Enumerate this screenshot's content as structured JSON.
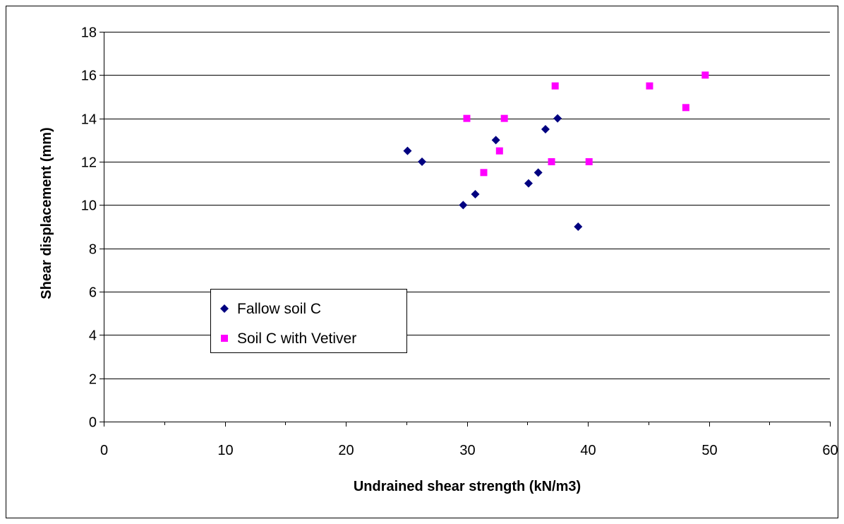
{
  "chart_data": {
    "type": "scatter",
    "title": "",
    "xlabel": "Undrained shear strength (kN/m3)",
    "ylabel": "Shear displacement (mm)",
    "xlim": [
      0,
      60
    ],
    "ylim": [
      0,
      18
    ],
    "x_major_ticks": [
      0,
      10,
      20,
      30,
      40,
      50,
      60
    ],
    "x_tick_labels": [
      "0",
      "10",
      "20",
      "30",
      "40",
      "50",
      "60"
    ],
    "x_minor_ticks": [
      5,
      15,
      25,
      35,
      45,
      55
    ],
    "y_major_ticks": [
      0,
      2,
      4,
      6,
      8,
      10,
      12,
      14,
      16,
      18
    ],
    "y_tick_labels": [
      "0",
      "2",
      "4",
      "6",
      "8",
      "10",
      "12",
      "14",
      "16",
      "18"
    ],
    "grid": "horizontal",
    "legend_position": "lower-left",
    "series": [
      {
        "name": "Fallow soil C",
        "marker": "diamond",
        "color": "#000080",
        "points": [
          {
            "x": 25.1,
            "y": 12.5
          },
          {
            "x": 26.3,
            "y": 12.0
          },
          {
            "x": 29.7,
            "y": 10.0
          },
          {
            "x": 30.7,
            "y": 10.5
          },
          {
            "x": 32.4,
            "y": 13.0
          },
          {
            "x": 35.1,
            "y": 11.0
          },
          {
            "x": 35.9,
            "y": 11.5
          },
          {
            "x": 36.5,
            "y": 13.5
          },
          {
            "x": 37.5,
            "y": 14.0
          },
          {
            "x": 39.2,
            "y": 9.0
          }
        ]
      },
      {
        "name": "Soil C with Vetiver",
        "marker": "square",
        "color": "#ff00ff",
        "points": [
          {
            "x": 30.0,
            "y": 14.0
          },
          {
            "x": 31.4,
            "y": 11.5
          },
          {
            "x": 32.7,
            "y": 12.5
          },
          {
            "x": 33.1,
            "y": 14.0
          },
          {
            "x": 37.0,
            "y": 12.0
          },
          {
            "x": 37.3,
            "y": 15.5
          },
          {
            "x": 40.1,
            "y": 12.0
          },
          {
            "x": 45.1,
            "y": 15.5
          },
          {
            "x": 48.1,
            "y": 14.5
          },
          {
            "x": 49.7,
            "y": 16.0
          }
        ]
      }
    ]
  }
}
